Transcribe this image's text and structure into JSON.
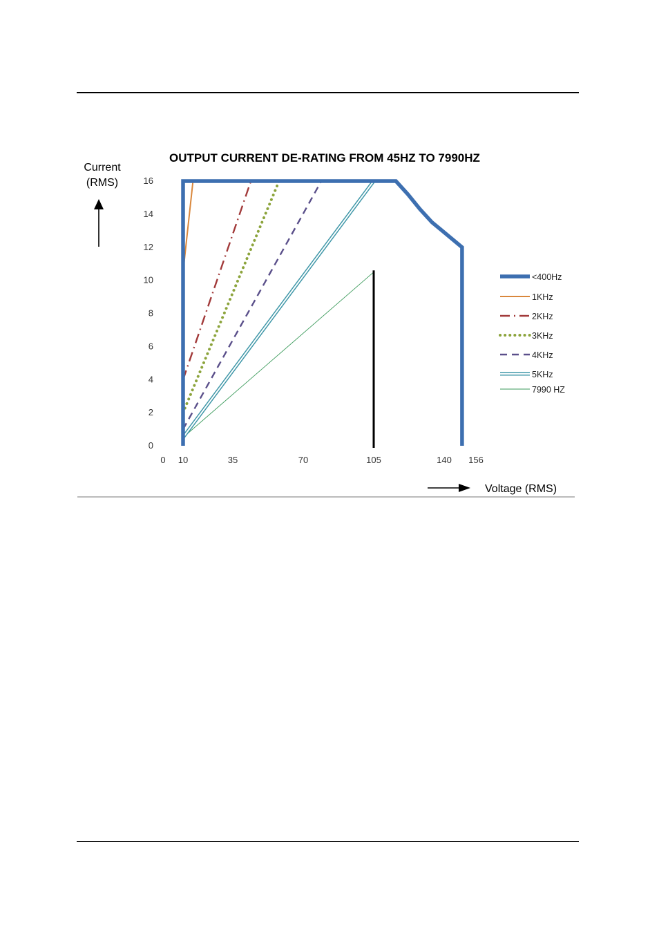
{
  "chart_data": {
    "type": "line",
    "title": "OUTPUT CURRENT DE-RATING FROM 45HZ TO 7990HZ",
    "ylabel": [
      "Current",
      "(RMS)"
    ],
    "xlabel": "Voltage (RMS)",
    "x_ticks": [
      0,
      10,
      35,
      70,
      105,
      140,
      156
    ],
    "y_ticks": [
      0,
      2,
      4,
      6,
      8,
      10,
      12,
      14,
      16
    ],
    "xlim": [
      0,
      156
    ],
    "ylim": [
      0,
      16
    ],
    "grid": false,
    "legend_position": "right",
    "marker_line": {
      "x": 105,
      "y_top": 10.6
    },
    "series": [
      {
        "name": "<400Hz",
        "color": "#3d6fb0",
        "style": "thick",
        "points": [
          [
            10,
            0
          ],
          [
            10,
            16
          ],
          [
            116,
            16
          ],
          [
            122,
            15.2
          ],
          [
            128,
            14.3
          ],
          [
            134,
            13.5
          ],
          [
            141,
            12.8
          ],
          [
            146,
            12.3
          ],
          [
            149,
            12
          ],
          [
            149,
            0
          ]
        ]
      },
      {
        "name": "1KHz",
        "color": "#d9873c",
        "style": "solid",
        "points": [
          [
            10,
            10.5
          ],
          [
            15,
            16
          ],
          [
            116,
            16
          ]
        ]
      },
      {
        "name": "2KHz",
        "color": "#a23a3a",
        "style": "dashdot",
        "points": [
          [
            10,
            4
          ],
          [
            44,
            16
          ]
        ]
      },
      {
        "name": "3KHz",
        "color": "#8ca43c",
        "style": "dotted",
        "points": [
          [
            10,
            2
          ],
          [
            58,
            16
          ]
        ]
      },
      {
        "name": "4KHz",
        "color": "#5a4f8a",
        "style": "dashed",
        "points": [
          [
            10,
            1
          ],
          [
            79,
            16
          ]
        ]
      },
      {
        "name": "5KHz",
        "color": "#3f97a8",
        "style": "double",
        "points": [
          [
            10,
            0.5
          ],
          [
            105,
            16
          ]
        ]
      },
      {
        "name": "7990 HZ",
        "color": "#3a9a5a",
        "style": "thin",
        "points": [
          [
            10,
            0.5
          ],
          [
            105,
            10.5
          ]
        ]
      }
    ]
  }
}
